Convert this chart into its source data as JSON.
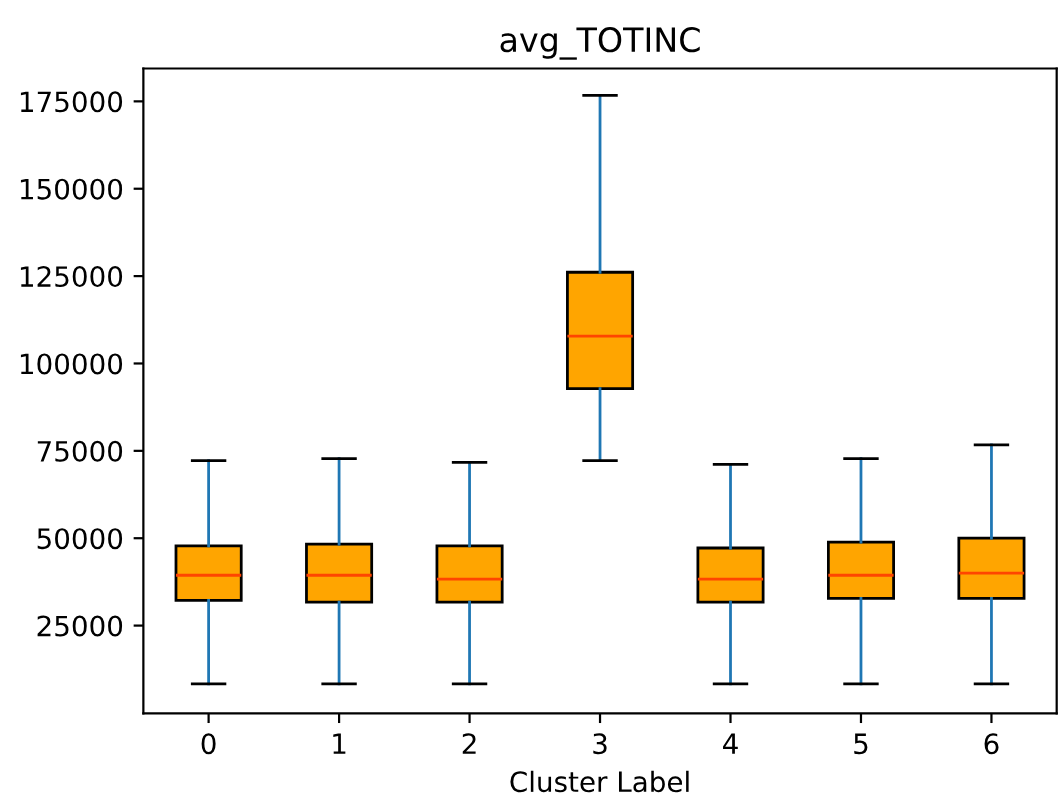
{
  "chart_data": {
    "type": "box",
    "title": "avg_TOTINC",
    "xlabel": "Cluster Label",
    "categories": [
      "0",
      "1",
      "2",
      "3",
      "4",
      "5",
      "6"
    ],
    "color": "#ffa500",
    "boxes": [
      {
        "low": 8300,
        "q1": 32200,
        "median": 39400,
        "q3": 47800,
        "high": 72200
      },
      {
        "low": 8300,
        "q1": 31700,
        "median": 39400,
        "q3": 48300,
        "high": 72800
      },
      {
        "low": 8300,
        "q1": 31700,
        "median": 38300,
        "q3": 47800,
        "high": 71700
      },
      {
        "low": 72200,
        "q1": 92800,
        "median": 107800,
        "q3": 126100,
        "high": 176700
      },
      {
        "low": 8300,
        "q1": 31700,
        "median": 38300,
        "q3": 47200,
        "high": 71100
      },
      {
        "low": 8300,
        "q1": 32800,
        "median": 39400,
        "q3": 48900,
        "high": 72800
      },
      {
        "low": 8300,
        "q1": 32800,
        "median": 40000,
        "q3": 50000,
        "high": 76700
      }
    ],
    "ylim": [
      -100,
      184400
    ],
    "yticks": [
      25000,
      50000,
      75000,
      100000,
      125000,
      150000,
      175000
    ],
    "grid": false
  }
}
